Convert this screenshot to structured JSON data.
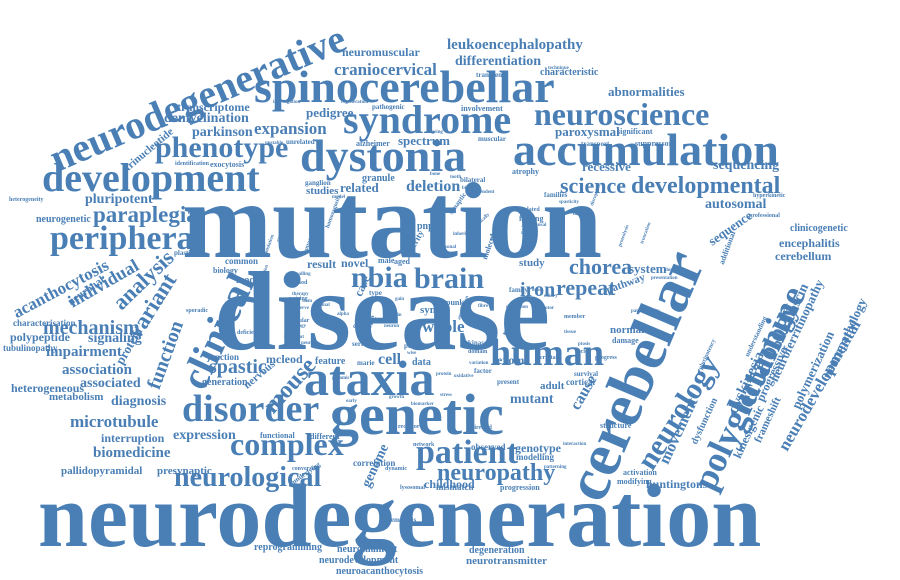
{
  "colors": {
    "word": "#4a7fb5"
  },
  "words": [
    {
      "key": "neurodegeneration",
      "text": "neurodegeneration"
    },
    {
      "key": "mutation",
      "text": "mutation"
    },
    {
      "key": "disease",
      "text": "disease"
    },
    {
      "key": "neurodegenerative",
      "text": "neurodegenerative"
    },
    {
      "key": "spinocerebellar",
      "text": "spinocerebellar"
    },
    {
      "key": "dystonia",
      "text": "dystonia"
    },
    {
      "key": "accumulation",
      "text": "accumulation"
    },
    {
      "key": "syndrome",
      "text": "syndrome"
    },
    {
      "key": "neuroscience",
      "text": "neuroscience"
    },
    {
      "key": "development",
      "text": "development"
    },
    {
      "key": "phenotype",
      "text": "phenotype"
    },
    {
      "key": "peripheral",
      "text": "peripheral"
    },
    {
      "key": "paraplegia",
      "text": "paraplegia"
    },
    {
      "key": "cerebellar",
      "text": "cerebellar"
    },
    {
      "key": "ataxia",
      "text": "ataxia"
    },
    {
      "key": "genetic",
      "text": "genetic"
    },
    {
      "key": "disorder",
      "text": "disorder"
    },
    {
      "key": "complex",
      "text": "complex"
    },
    {
      "key": "neurological",
      "text": "neurological"
    },
    {
      "key": "clinical",
      "text": "clinical"
    },
    {
      "key": "human",
      "text": "human"
    },
    {
      "key": "patient",
      "text": "patient"
    },
    {
      "key": "neuropathy",
      "text": "neuropathy"
    },
    {
      "key": "polyglutamine",
      "text": "polyglutamine"
    },
    {
      "key": "neurology",
      "text": "neurology"
    },
    {
      "key": "technology",
      "text": "technology"
    },
    {
      "key": "developmental",
      "text": "developmental"
    },
    {
      "key": "science",
      "text": "science"
    },
    {
      "key": "nbia",
      "text": "nbia"
    },
    {
      "key": "brain",
      "text": "brain"
    },
    {
      "key": "chorea",
      "text": "chorea"
    },
    {
      "key": "repeat",
      "text": "repeat"
    },
    {
      "key": "iron",
      "text": "iron"
    },
    {
      "key": "mechanism",
      "text": "mechanism"
    },
    {
      "key": "variant",
      "text": "variant"
    },
    {
      "key": "analysis",
      "text": "analysis"
    },
    {
      "key": "individual",
      "text": "individual"
    },
    {
      "key": "acanthocytosis",
      "text": "acanthocytosis"
    },
    {
      "key": "function",
      "text": "function"
    },
    {
      "key": "mouse",
      "text": "mouse"
    },
    {
      "key": "spastic",
      "text": "spastic"
    },
    {
      "key": "craniocervical",
      "text": "craniocervical"
    },
    {
      "key": "leukoencephalopathy",
      "text": "leukoencephalopathy"
    },
    {
      "key": "differentiation",
      "text": "differentiation"
    },
    {
      "key": "neuromuscular",
      "text": "neuromuscular"
    },
    {
      "key": "characteristic",
      "text": "characteristic"
    },
    {
      "key": "abnormalities",
      "text": "abnormalities"
    },
    {
      "key": "paroxysmal",
      "text": "paroxysmal"
    },
    {
      "key": "transcriptome",
      "text": "transcriptome"
    },
    {
      "key": "demyelination",
      "text": "demyelination"
    },
    {
      "key": "parkinson",
      "text": "parkinson"
    },
    {
      "key": "expansion",
      "text": "expansion"
    },
    {
      "key": "pedigree",
      "text": "pedigree"
    },
    {
      "key": "spectrum",
      "text": "spectrum"
    },
    {
      "key": "recessive",
      "text": "recessive"
    },
    {
      "key": "sequencing",
      "text": "sequencing"
    },
    {
      "key": "autosomal",
      "text": "autosomal"
    },
    {
      "key": "sequence",
      "text": "sequence"
    },
    {
      "key": "deletion",
      "text": "deletion"
    },
    {
      "key": "related",
      "text": "related"
    },
    {
      "key": "studies",
      "text": "studies"
    },
    {
      "key": "trinucleotide",
      "text": "trinucleotide"
    },
    {
      "key": "pluripotent",
      "text": "pluripotent"
    },
    {
      "key": "neurogenetic",
      "text": "neurogenetic"
    },
    {
      "key": "signaling",
      "text": "signaling"
    },
    {
      "key": "impairment",
      "text": "impairment"
    },
    {
      "key": "association",
      "text": "association"
    },
    {
      "key": "associated",
      "text": "associated"
    },
    {
      "key": "protein",
      "text": "protein"
    },
    {
      "key": "neuronal",
      "text": "neuronal"
    },
    {
      "key": "polypeptide",
      "text": "polypeptide"
    },
    {
      "key": "characterisation",
      "text": "characterisation"
    },
    {
      "key": "tubulinopathy",
      "text": "tubulinopathy"
    },
    {
      "key": "heterogeneous",
      "text": "heterogeneous"
    },
    {
      "key": "metabolism",
      "text": "metabolism"
    },
    {
      "key": "diagnosis",
      "text": "diagnosis"
    },
    {
      "key": "microtubule",
      "text": "microtubule"
    },
    {
      "key": "interruption",
      "text": "interruption"
    },
    {
      "key": "expression",
      "text": "expression"
    },
    {
      "key": "biomedicine",
      "text": "biomedicine"
    },
    {
      "key": "pallidopyramidal",
      "text": "pallidopyramidal"
    },
    {
      "key": "presynaptic",
      "text": "presynaptic"
    },
    {
      "key": "functional",
      "text": "functional"
    },
    {
      "key": "different",
      "text": "different"
    },
    {
      "key": "cell",
      "text": "cell"
    },
    {
      "key": "whole",
      "text": "whole"
    },
    {
      "key": "exome",
      "text": "exome"
    },
    {
      "key": "mutant",
      "text": "mutant"
    },
    {
      "key": "cause",
      "text": "cause"
    },
    {
      "key": "genome",
      "text": "genome"
    },
    {
      "key": "correlation",
      "text": "correlation"
    },
    {
      "key": "childhood",
      "text": "childhood"
    },
    {
      "key": "mismatch",
      "text": "mismatch"
    },
    {
      "key": "genotype",
      "text": "genotype"
    },
    {
      "key": "modelling",
      "text": "modelling"
    },
    {
      "key": "observed",
      "text": "observed"
    },
    {
      "key": "progression",
      "text": "progression"
    },
    {
      "key": "huntingtons",
      "text": "huntingtons"
    },
    {
      "key": "activation",
      "text": "activation"
    },
    {
      "key": "modifying",
      "text": "modifying"
    },
    {
      "key": "movement",
      "text": "movement"
    },
    {
      "key": "dysfunction",
      "text": "dysfunction"
    },
    {
      "key": "kinesigenic",
      "text": "kinesigenic"
    },
    {
      "key": "frameshift",
      "text": "frameshift"
    },
    {
      "key": "dyskinesia",
      "text": "dyskinesia"
    },
    {
      "key": "progressive",
      "text": "progressive"
    },
    {
      "key": "neuroferritinopathy",
      "text": "neuroferritinopathy"
    },
    {
      "key": "polymerization",
      "text": "polymerization"
    },
    {
      "key": "neurodevelopmental",
      "text": "neurodevelopmental"
    },
    {
      "key": "neuropathology",
      "text": "neuropathology"
    },
    {
      "key": "neurofascin",
      "text": "neurofascin"
    },
    {
      "key": "encephalitis",
      "text": "encephalitis"
    },
    {
      "key": "clinicogenetic",
      "text": "clinicogenetic"
    },
    {
      "key": "cerebellum",
      "text": "cerebellum"
    },
    {
      "key": "system",
      "text": "system"
    },
    {
      "key": "study",
      "text": "study"
    },
    {
      "key": "normal",
      "text": "normal"
    },
    {
      "key": "damage",
      "text": "damage"
    },
    {
      "key": "pathway",
      "text": "pathway"
    },
    {
      "key": "adult",
      "text": "adult"
    },
    {
      "key": "cortical",
      "text": "cortical"
    },
    {
      "key": "structure",
      "text": "structure"
    },
    {
      "key": "reprogramming",
      "text": "reprogramming"
    },
    {
      "key": "neurofilament",
      "text": "neurofilament"
    },
    {
      "key": "neurodevelopment",
      "text": "neurodevelopment"
    },
    {
      "key": "neuroacanthocytosis",
      "text": "neuroacanthocytosis"
    },
    {
      "key": "degeneration",
      "text": "degeneration"
    },
    {
      "key": "neurotransmitter",
      "text": "neurotransmitter"
    },
    {
      "key": "hemolysis",
      "text": "hemolysis"
    },
    {
      "key": "nervous",
      "text": "nervous"
    },
    {
      "key": "mcleod",
      "text": "mcleod"
    },
    {
      "key": "junction",
      "text": "junction"
    },
    {
      "key": "generation",
      "text": "generation"
    },
    {
      "key": "model",
      "text": "model"
    },
    {
      "key": "common",
      "text": "common"
    },
    {
      "key": "biology",
      "text": "biology"
    },
    {
      "key": "result",
      "text": "result"
    },
    {
      "key": "feature",
      "text": "feature"
    },
    {
      "key": "data",
      "text": "data"
    },
    {
      "key": "novel",
      "text": "novel"
    },
    {
      "key": "case",
      "text": "case"
    },
    {
      "key": "aged",
      "text": "aged"
    },
    {
      "key": "male",
      "text": "male"
    },
    {
      "key": "prime",
      "text": "prime"
    },
    {
      "key": "pnpla",
      "text": "pnpla"
    },
    {
      "key": "severity",
      "text": "severity"
    },
    {
      "key": "granule",
      "text": "granule"
    },
    {
      "key": "ganglion",
      "text": "ganglion"
    },
    {
      "key": "alzheimer",
      "text": "alzheimer"
    },
    {
      "key": "muscular",
      "text": "muscular"
    },
    {
      "key": "atrophy",
      "text": "atrophy"
    },
    {
      "key": "involvement",
      "text": "involvement"
    },
    {
      "key": "pathogenic",
      "text": "pathogenic"
    },
    {
      "key": "transgenic",
      "text": "transgenic"
    },
    {
      "key": "significant",
      "text": "significant"
    },
    {
      "key": "exocytosis",
      "text": "exocytosis"
    },
    {
      "key": "identification",
      "text": "identification"
    },
    {
      "key": "families",
      "text": "families"
    },
    {
      "key": "finding",
      "text": "finding"
    },
    {
      "key": "plasticity",
      "text": "plasticity"
    },
    {
      "key": "heterogeneity",
      "text": "heterogeneity"
    },
    {
      "key": "family",
      "text": "family"
    },
    {
      "key": "synaptic",
      "text": "synaptic"
    },
    {
      "key": "kinase",
      "text": "kinase"
    },
    {
      "key": "domain",
      "text": "domain"
    },
    {
      "key": "repair",
      "text": "repair"
    },
    {
      "key": "present",
      "text": "present"
    },
    {
      "key": "factor",
      "text": "factor"
    },
    {
      "key": "survival",
      "text": "survival"
    },
    {
      "key": "receptor",
      "text": "receptor"
    },
    {
      "key": "directed",
      "text": "directed"
    },
    {
      "key": "network",
      "text": "network"
    },
    {
      "key": "dynamic",
      "text": "dynamic"
    },
    {
      "key": "lysosomal",
      "text": "lysosomal"
    },
    {
      "key": "conversion",
      "text": "conversion"
    },
    {
      "key": "underlying",
      "text": "underlying"
    },
    {
      "key": "deficient",
      "text": "deficient"
    },
    {
      "key": "defect",
      "text": "defect"
    },
    {
      "key": "series",
      "text": "series"
    },
    {
      "key": "marie",
      "text": "marie"
    },
    {
      "key": "cellular",
      "text": "cellular"
    },
    {
      "key": "sporadic",
      "text": "sporadic"
    },
    {
      "key": "method",
      "text": "method"
    },
    {
      "key": "syne",
      "text": "syne"
    },
    {
      "key": "type",
      "text": "type"
    },
    {
      "key": "punk",
      "text": "punk"
    },
    {
      "key": "member",
      "text": "member"
    },
    {
      "key": "progress",
      "text": "progress"
    },
    {
      "key": "crystal",
      "text": "crystal"
    },
    {
      "key": "isolated",
      "text": "isolated"
    },
    {
      "key": "transport",
      "text": "transport"
    },
    {
      "key": "suppressor",
      "text": "suppressor"
    },
    {
      "key": "hyperkinetic",
      "text": "hyperkinetic"
    },
    {
      "key": "professional",
      "text": "professional"
    },
    {
      "key": "understanding",
      "text": "understanding"
    },
    {
      "key": "pluripotency",
      "text": "pluripotency"
    },
    {
      "key": "additional",
      "text": "additional"
    },
    {
      "key": "cycle",
      "text": "cycle"
    },
    {
      "key": "unrelated",
      "text": "unrelated"
    },
    {
      "key": "bilateral",
      "text": "bilateral"
    },
    {
      "key": "independent",
      "text": "independent"
    },
    {
      "key": "translation",
      "text": "translation"
    },
    {
      "key": "cognitive",
      "text": "cognitive"
    },
    {
      "key": "immunological",
      "text": "immunological"
    },
    {
      "key": "investigation",
      "text": "investigation"
    },
    {
      "key": "regeneration",
      "text": "regeneration"
    },
    {
      "key": "ageing",
      "text": "ageing"
    },
    {
      "key": "unstable",
      "text": "unstable"
    },
    {
      "key": "biallelic",
      "text": "biallelic"
    },
    {
      "key": "tooth",
      "text": "tooth"
    },
    {
      "key": "bone",
      "text": "bone"
    },
    {
      "key": "mouse_model",
      "text": "model"
    },
    {
      "key": "spasticity",
      "text": "spasticity"
    },
    {
      "key": "calpain",
      "text": "calpain"
    },
    {
      "key": "causal",
      "text": "causal"
    },
    {
      "key": "technique",
      "text": "technique"
    },
    {
      "key": "patterning",
      "text": "patterning"
    },
    {
      "key": "interaction",
      "text": "interaction"
    },
    {
      "key": "homozygosity",
      "text": "homozygosity"
    },
    {
      "key": "mitochondrial",
      "text": "mitochondrial"
    },
    {
      "key": "molecular",
      "text": "molecular"
    },
    {
      "key": "axonal",
      "text": "axonal"
    },
    {
      "key": "clinically",
      "text": "clinically"
    },
    {
      "key": "inherited",
      "text": "inherited"
    },
    {
      "key": "onset",
      "text": "onset"
    },
    {
      "key": "deficiency",
      "text": "deficiency"
    },
    {
      "key": "ciliary",
      "text": "ciliary"
    },
    {
      "key": "disruption",
      "text": "disruption"
    },
    {
      "key": "motor",
      "text": "motor"
    },
    {
      "key": "tissue",
      "text": "tissue"
    },
    {
      "key": "pathogenicity",
      "text": "pathogenicity"
    },
    {
      "key": "presentation",
      "text": "presentation"
    },
    {
      "key": "dominant",
      "text": "dominant"
    },
    {
      "key": "truncation",
      "text": "truncation"
    },
    {
      "key": "proteolysis",
      "text": "proteolysis"
    },
    {
      "key": "ptosis",
      "text": "ptosis"
    },
    {
      "key": "nerve",
      "text": "nerve"
    },
    {
      "key": "stem",
      "text": "stem"
    },
    {
      "key": "therapy",
      "text": "therapy"
    },
    {
      "key": "signalling",
      "text": "signalling"
    },
    {
      "key": "pure",
      "text": "pure"
    },
    {
      "key": "wise",
      "text": "wise"
    },
    {
      "key": "genomic",
      "text": "genomic"
    },
    {
      "key": "alpha",
      "text": "alpha"
    },
    {
      "key": "strain",
      "text": "strain"
    },
    {
      "key": "neuron",
      "text": "neuron"
    },
    {
      "key": "gain",
      "text": "gain"
    },
    {
      "key": "aggregation",
      "text": "aggregation"
    },
    {
      "key": "fibre",
      "text": "fibre"
    },
    {
      "key": "variation",
      "text": "variation"
    },
    {
      "key": "deposition",
      "text": "deposition"
    },
    {
      "key": "protein2",
      "text": "protein"
    },
    {
      "key": "oxidative",
      "text": "oxidative"
    },
    {
      "key": "pairing",
      "text": "pairing"
    },
    {
      "key": "stress",
      "text": "stress"
    },
    {
      "key": "growth",
      "text": "growth"
    },
    {
      "key": "biomarker",
      "text": "biomarker"
    },
    {
      "key": "pathology",
      "text": "pathology"
    },
    {
      "key": "neurite",
      "text": "neurite"
    },
    {
      "key": "transmission",
      "text": "transmission"
    },
    {
      "key": "knockout",
      "text": "knockout"
    },
    {
      "key": "early",
      "text": "early"
    },
    {
      "key": "spinal",
      "text": "spinal"
    }
  ]
}
